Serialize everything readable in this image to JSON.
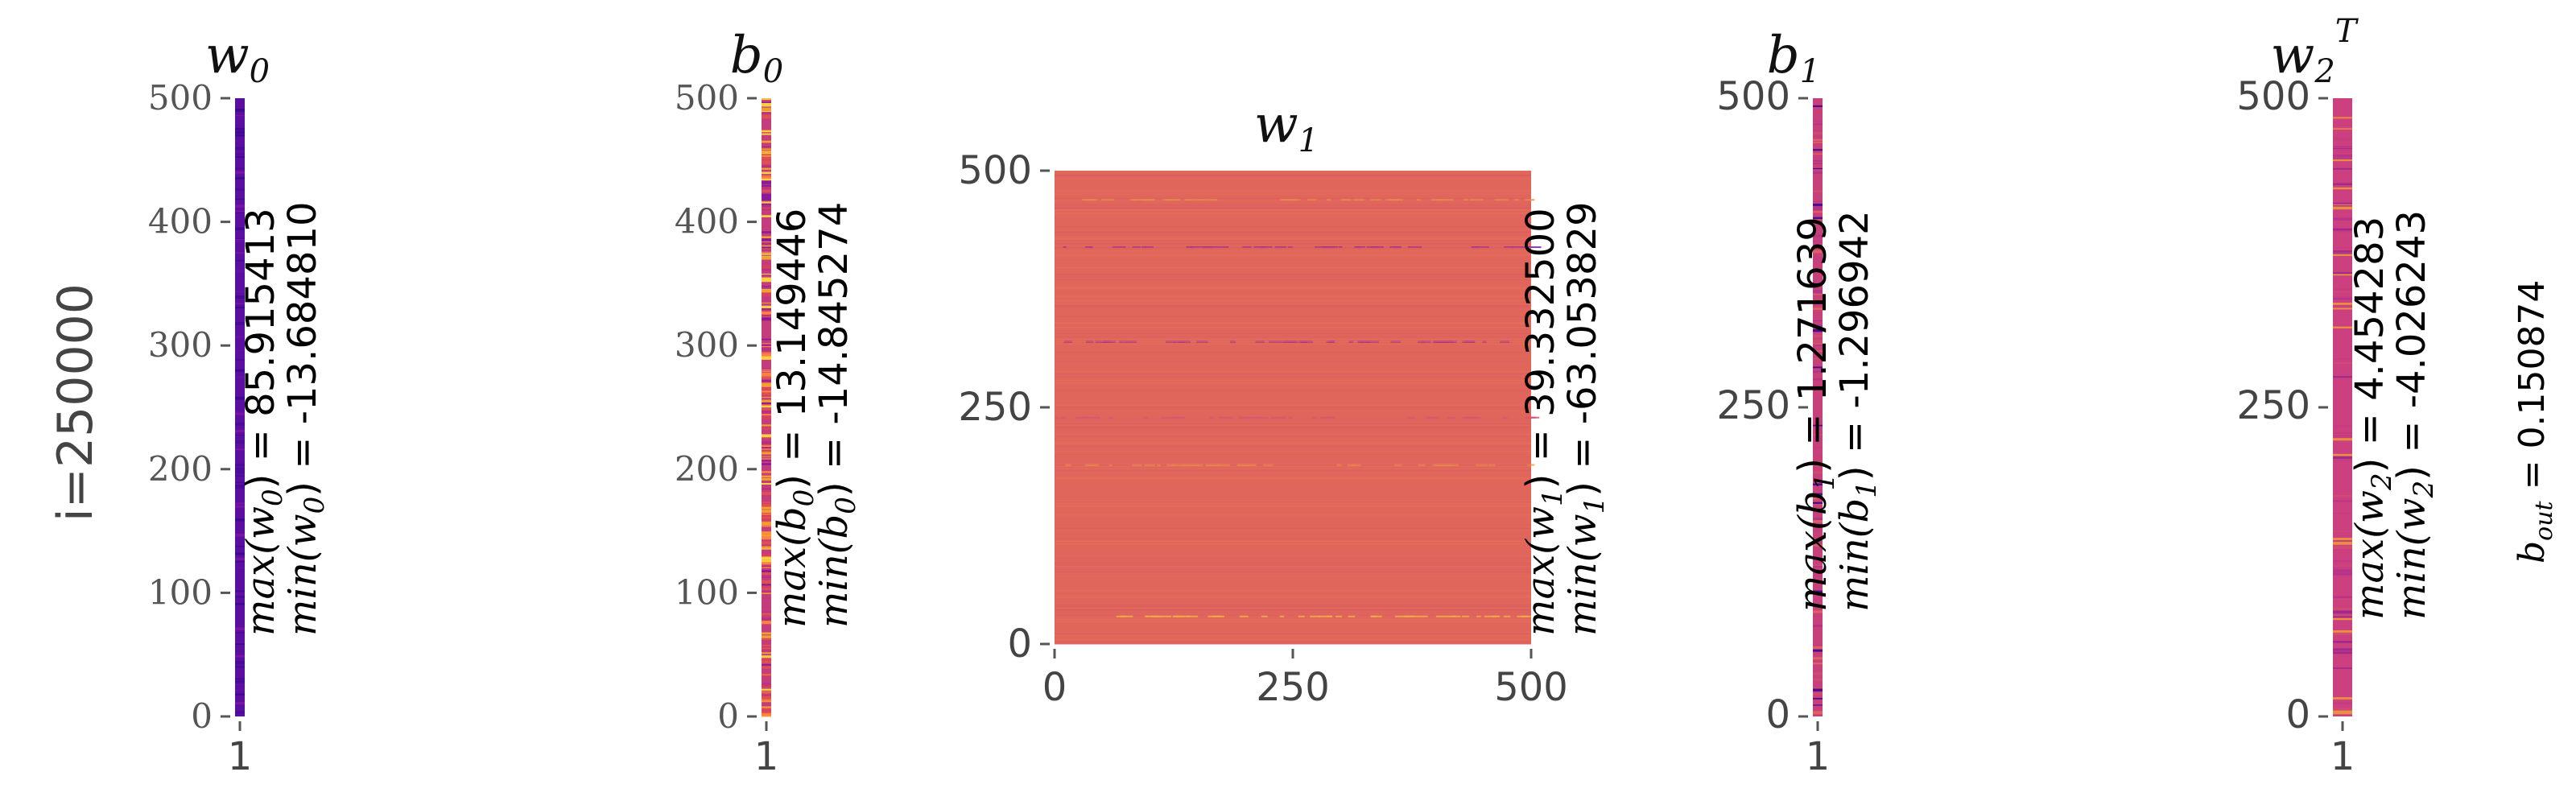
{
  "row_label": "i=250000",
  "colors": {
    "w0": "#5a0fa0",
    "b0_base": "#c43c7c",
    "w1": "#e0665c",
    "b1": "#c8407a",
    "w2T": "#cc4080",
    "axis": "#555555"
  },
  "chart_data": [
    {
      "type": "heatmap",
      "name": "w0",
      "title": "w",
      "title_sub": "0",
      "ylim": [
        0,
        500
      ],
      "yticks": [
        "0",
        "100",
        "200",
        "300",
        "400",
        "500"
      ],
      "xticks": [
        "1"
      ],
      "stat_max_label": "max(w",
      "stat_max_sub": "0",
      "stat_max_value": "85.915413",
      "stat_min_label": "min(w",
      "stat_min_sub": "0",
      "stat_min_value": "-13.684810",
      "max": 85.915413,
      "min": -13.68481
    },
    {
      "type": "heatmap",
      "name": "b0",
      "title": "b",
      "title_sub": "0",
      "ylim": [
        0,
        500
      ],
      "yticks": [
        "0",
        "100",
        "200",
        "300",
        "400",
        "500"
      ],
      "xticks": [
        "1"
      ],
      "stat_max_label": "max(b",
      "stat_max_sub": "0",
      "stat_max_value": "13.149446",
      "stat_min_label": "min(b",
      "stat_min_sub": "0",
      "stat_min_value": "-14.845274",
      "max": 13.149446,
      "min": -14.845274
    },
    {
      "type": "heatmap",
      "name": "w1",
      "title": "w",
      "title_sub": "1",
      "ylim": [
        0,
        500
      ],
      "xlim": [
        0,
        500
      ],
      "yticks": [
        "0",
        "250",
        "500"
      ],
      "xticks": [
        "0",
        "250",
        "500"
      ],
      "stat_max_label": "max(w",
      "stat_max_sub": "1",
      "stat_max_value": "39.332500",
      "stat_min_label": "min(w",
      "stat_min_sub": "1",
      "stat_min_value": "-63.053829",
      "max": 39.3325,
      "min": -63.053829
    },
    {
      "type": "heatmap",
      "name": "b1",
      "title": "b",
      "title_sub": "1",
      "ylim": [
        0,
        500
      ],
      "yticks": [
        "0",
        "250",
        "500"
      ],
      "xticks": [
        "1"
      ],
      "stat_max_label": "max(b",
      "stat_max_sub": "1",
      "stat_max_value": "1.271639",
      "stat_min_label": "min(b",
      "stat_min_sub": "1",
      "stat_min_value": "-1.296942",
      "max": 1.271639,
      "min": -1.296942
    },
    {
      "type": "heatmap",
      "name": "w2T",
      "title": "w",
      "title_sub": "2",
      "title_sup": "T",
      "ylim": [
        0,
        500
      ],
      "yticks": [
        "0",
        "250",
        "500"
      ],
      "xticks": [
        "1"
      ],
      "stat_max_label": "max(w",
      "stat_max_sub": "2",
      "stat_max_value": "4.454283",
      "stat_min_label": "min(w",
      "stat_min_sub": "2",
      "stat_min_value": "-4.026243",
      "max": 4.454283,
      "min": -4.026243
    }
  ],
  "b_out": {
    "label": "b",
    "sub": "out",
    "value": "= 0.150874",
    "number": 0.150874
  }
}
